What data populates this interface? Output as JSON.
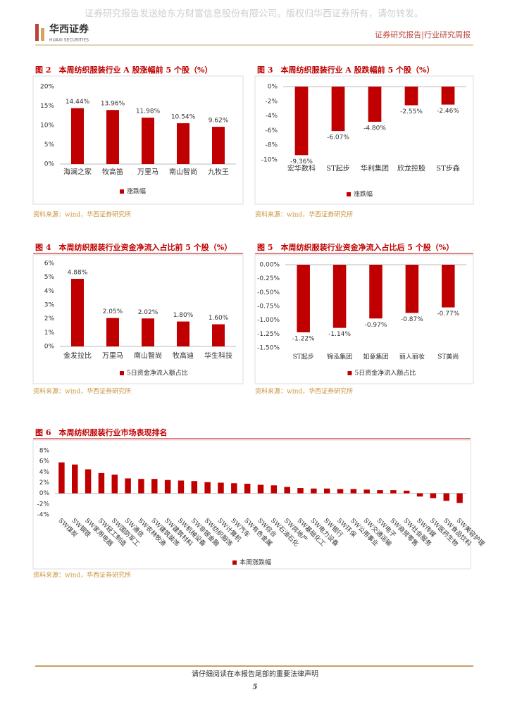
{
  "header": {
    "watermark": "证券研究报告发送给东方财富信息股份有限公司。版权归华西证券所有，请勿转发。",
    "logo_cn": "华西证券",
    "logo_en": "HUAXI SECURITIES",
    "report_type": "证券研究报告|行业研究周报"
  },
  "chart_data": [
    {
      "type": "bar",
      "title": "图 2　本周纺织服装行业 A 股涨幅前 5 个股（%）",
      "categories": [
        "海澜之家",
        "牧高笛",
        "万里马",
        "南山智尚",
        "九牧王"
      ],
      "series": [
        {
          "name": "涨跌幅",
          "color": "#c00000",
          "values": [
            14.44,
            13.96,
            11.98,
            10.54,
            9.62
          ],
          "value_labels": [
            "14.44%",
            "13.96%",
            "11.98%",
            "10.54%",
            "9.62%"
          ]
        }
      ],
      "ylim": [
        0,
        20
      ],
      "yticks": [
        {
          "value": 0,
          "label": "0%"
        },
        {
          "value": 5,
          "label": "5%"
        },
        {
          "value": 10,
          "label": "10%"
        },
        {
          "value": 15,
          "label": "15%"
        },
        {
          "value": 20,
          "label": "20%"
        }
      ],
      "source": "资料来源：wind，华西证券研究所"
    },
    {
      "type": "bar",
      "title": "图 3　本周纺织服装行业 A 股跌幅前 5 个股（%）",
      "categories": [
        "宏华数科",
        "ST起步",
        "华利集团",
        "欣龙控股",
        "ST步森"
      ],
      "series": [
        {
          "name": "涨跌幅",
          "color": "#c00000",
          "values": [
            -9.36,
            -6.07,
            -4.8,
            -2.55,
            -2.46
          ],
          "value_labels": [
            "-9.36%",
            "-6.07%",
            "-4.80%",
            "-2.55%",
            "-2.46%"
          ]
        }
      ],
      "ylim": [
        -10,
        0
      ],
      "yticks": [
        {
          "value": -10,
          "label": "-10%"
        },
        {
          "value": -8,
          "label": "-8%"
        },
        {
          "value": -6,
          "label": "-6%"
        },
        {
          "value": -4,
          "label": "-4%"
        },
        {
          "value": -2,
          "label": "-2%"
        },
        {
          "value": 0,
          "label": "0%"
        }
      ],
      "source": "资料来源：wind，华西证券研究所"
    },
    {
      "type": "bar",
      "title": "图 4　本周纺织服装行业资金净流入占比前 5 个股（%）",
      "categories": [
        "金发拉比",
        "万里马",
        "南山智尚",
        "牧高迪",
        "华生科技"
      ],
      "series": [
        {
          "name": "5日资金净流入额占比",
          "color": "#c00000",
          "values": [
            4.88,
            2.05,
            2.02,
            1.8,
            1.6
          ],
          "value_labels": [
            "4.88%",
            "2.05%",
            "2.02%",
            "1.80%",
            "1.60%"
          ]
        }
      ],
      "ylim": [
        0,
        6
      ],
      "yticks": [
        {
          "value": 0,
          "label": "0%"
        },
        {
          "value": 1,
          "label": "1%"
        },
        {
          "value": 2,
          "label": "2%"
        },
        {
          "value": 3,
          "label": "3%"
        },
        {
          "value": 4,
          "label": "4%"
        },
        {
          "value": 5,
          "label": "5%"
        },
        {
          "value": 6,
          "label": "6%"
        }
      ],
      "source": "资料来源：wind，华西证券研究所"
    },
    {
      "type": "bar",
      "title": "图 5　本周纺织服装行业资金净流入占比后 5 个股（%）",
      "categories": [
        "ST起步",
        "锦泓集团",
        "如意集团",
        "丽人丽妆",
        "ST美尚"
      ],
      "series": [
        {
          "name": "5日资金净流入额占比",
          "color": "#c00000",
          "values": [
            -1.22,
            -1.14,
            -0.97,
            -0.87,
            -0.77
          ],
          "value_labels": [
            "-1.22%",
            "-1.14%",
            "-0.97%",
            "-0.87%",
            "-0.77%"
          ]
        }
      ],
      "ylim": [
        -1.5,
        0
      ],
      "yticks": [
        {
          "value": -1.5,
          "label": "-1.50%"
        },
        {
          "value": -1.25,
          "label": "-1.25%"
        },
        {
          "value": -1,
          "label": "-1.00%"
        },
        {
          "value": -0.75,
          "label": "-0.75%"
        },
        {
          "value": -0.5,
          "label": "-0.50%"
        },
        {
          "value": -0.25,
          "label": "-0.25%"
        },
        {
          "value": 0,
          "label": "0.00%"
        }
      ],
      "source": "资料来源：wind，华西证券研究所"
    },
    {
      "type": "bar",
      "title": "图 6　本周纺织服装行业市场表现排名",
      "categories": [
        "SW煤炭",
        "SW钢铁",
        "SW家用电器",
        "SW轻工制造",
        "SW国防军工",
        "SW通信",
        "SW农林牧渔",
        "SW建筑装饰",
        "SW建筑材料",
        "SW机械设备",
        "SW非银金融",
        "SW纺织服饰",
        "SW计算机",
        "SW汽车",
        "SW有色金属",
        "SW综合",
        "SW石油石化",
        "SW房地产",
        "SW基础化工",
        "SW电力设备",
        "SW银行",
        "SW环保",
        "SW公用事业",
        "SW交通运输",
        "SW电子",
        "SW商贸零售",
        "SW社会服务",
        "SW传媒",
        "SW医药生物",
        "SW食品饮料",
        "SW美容护理"
      ],
      "series": [
        {
          "name": "本周涨跌幅",
          "color": "#c00000",
          "values": [
            5.8,
            5.4,
            4.5,
            3.8,
            3.5,
            2.8,
            2.7,
            2.7,
            2.5,
            2.4,
            2.3,
            2.1,
            2.0,
            1.9,
            1.8,
            1.6,
            1.5,
            1.2,
            1.0,
            0.9,
            0.9,
            0.8,
            0.8,
            0.7,
            0.6,
            0.6,
            0.5,
            -0.6,
            -0.9,
            -1.4,
            -1.8
          ]
        }
      ],
      "ylim": [
        -4,
        8
      ],
      "yticks": [
        {
          "value": -4,
          "label": "-4%"
        },
        {
          "value": -2,
          "label": "-2%"
        },
        {
          "value": 0,
          "label": "0%"
        },
        {
          "value": 2,
          "label": "2%"
        },
        {
          "value": 4,
          "label": "4%"
        },
        {
          "value": 6,
          "label": "6%"
        },
        {
          "value": 8,
          "label": "8%"
        }
      ],
      "source": "资料来源：wind，华西证券研究所"
    }
  ],
  "footer": {
    "notice": "请仔细阅读在本报告尾部的重要法律声明",
    "page": "5"
  }
}
